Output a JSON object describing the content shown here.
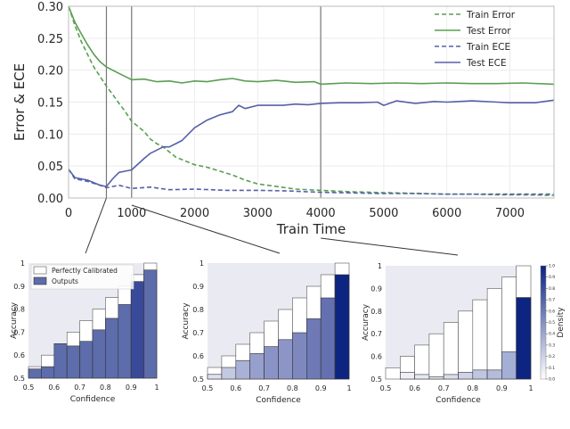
{
  "chart_data": [
    {
      "type": "line",
      "xlabel": "Train Time",
      "ylabel": "Error & ECE",
      "xlim": [
        0,
        7700
      ],
      "ylim": [
        0,
        0.3
      ],
      "xticks": [
        0,
        1000,
        2000,
        3000,
        4000,
        5000,
        6000,
        7000
      ],
      "yticks": [
        0.0,
        0.05,
        0.1,
        0.15,
        0.2,
        0.25,
        0.3
      ],
      "ytick_labels": [
        "0.00",
        "0.05",
        "0.10",
        "0.15",
        "0.20",
        "0.25",
        "0.30"
      ],
      "grid": true,
      "legend_position": "top-right",
      "markers_x": [
        600,
        1000,
        4000
      ],
      "series": [
        {
          "name": "Train Error",
          "color": "#5a9e52",
          "dashed": true,
          "x": [
            0,
            100,
            200,
            300,
            400,
            500,
            600,
            700,
            800,
            900,
            1000,
            1100,
            1200,
            1300,
            1400,
            1500,
            1600,
            1700,
            1800,
            1900,
            2000,
            2200,
            2400,
            2600,
            2800,
            3000,
            3300,
            3600,
            4000,
            4400,
            4800,
            5200,
            5600,
            6000,
            6400,
            6800,
            7200,
            7700
          ],
          "y": [
            0.3,
            0.27,
            0.245,
            0.225,
            0.205,
            0.19,
            0.175,
            0.162,
            0.148,
            0.135,
            0.12,
            0.112,
            0.104,
            0.092,
            0.085,
            0.08,
            0.072,
            0.064,
            0.06,
            0.056,
            0.052,
            0.048,
            0.042,
            0.036,
            0.028,
            0.022,
            0.018,
            0.014,
            0.012,
            0.01,
            0.009,
            0.008,
            0.007,
            0.006,
            0.006,
            0.005,
            0.005,
            0.004
          ]
        },
        {
          "name": "Test Error",
          "color": "#5a9e52",
          "dashed": false,
          "x": [
            0,
            100,
            200,
            300,
            400,
            500,
            600,
            700,
            800,
            900,
            1000,
            1200,
            1400,
            1600,
            1800,
            2000,
            2200,
            2400,
            2600,
            2800,
            3000,
            3300,
            3600,
            3900,
            4000,
            4400,
            4800,
            5200,
            5600,
            6000,
            6400,
            6800,
            7200,
            7700
          ],
          "y": [
            0.3,
            0.275,
            0.257,
            0.24,
            0.225,
            0.213,
            0.205,
            0.2,
            0.195,
            0.19,
            0.185,
            0.186,
            0.182,
            0.183,
            0.18,
            0.183,
            0.182,
            0.185,
            0.187,
            0.183,
            0.182,
            0.184,
            0.181,
            0.182,
            0.178,
            0.18,
            0.179,
            0.18,
            0.179,
            0.18,
            0.179,
            0.179,
            0.18,
            0.178
          ]
        },
        {
          "name": "Train ECE",
          "color": "#5560a8",
          "dashed": true,
          "x": [
            0,
            100,
            300,
            500,
            600,
            800,
            1000,
            1300,
            1600,
            2000,
            2500,
            3000,
            3500,
            4000,
            4500,
            5000,
            5500,
            6000,
            6500,
            7000,
            7700
          ],
          "y": [
            0.045,
            0.03,
            0.026,
            0.02,
            0.016,
            0.02,
            0.015,
            0.017,
            0.013,
            0.014,
            0.012,
            0.012,
            0.011,
            0.009,
            0.008,
            0.007,
            0.007,
            0.006,
            0.006,
            0.006,
            0.006
          ]
        },
        {
          "name": "Test ECE",
          "color": "#5560a8",
          "dashed": false,
          "x": [
            0,
            100,
            300,
            500,
            600,
            700,
            800,
            900,
            1000,
            1100,
            1200,
            1300,
            1400,
            1500,
            1600,
            1700,
            1800,
            1900,
            2000,
            2200,
            2400,
            2600,
            2700,
            2800,
            3000,
            3200,
            3400,
            3600,
            3800,
            4000,
            4300,
            4600,
            4900,
            5000,
            5200,
            5500,
            5800,
            6000,
            6400,
            6800,
            7000,
            7400,
            7700
          ],
          "y": [
            0.045,
            0.032,
            0.028,
            0.02,
            0.018,
            0.03,
            0.04,
            0.042,
            0.044,
            0.053,
            0.062,
            0.07,
            0.075,
            0.08,
            0.08,
            0.085,
            0.09,
            0.1,
            0.11,
            0.122,
            0.13,
            0.135,
            0.145,
            0.14,
            0.145,
            0.145,
            0.145,
            0.147,
            0.146,
            0.148,
            0.149,
            0.149,
            0.15,
            0.145,
            0.152,
            0.148,
            0.151,
            0.15,
            0.152,
            0.15,
            0.149,
            0.149,
            0.153
          ]
        }
      ],
      "legend": [
        "Train Error",
        "Test Error",
        "Train ECE",
        "Test ECE"
      ]
    },
    {
      "type": "bar",
      "xlabel": "Confidence",
      "ylabel": "Accuracy",
      "xlim": [
        0.5,
        1.0
      ],
      "ylim": [
        0.5,
        1.0
      ],
      "xticks": [
        0.5,
        0.6,
        0.7,
        0.8,
        0.9,
        1.0
      ],
      "yticks": [
        0.5,
        0.6,
        0.7,
        0.8,
        0.9,
        1.0
      ],
      "legend": [
        "Perfectly Calibrated",
        "Outputs"
      ],
      "legend_position": "top-left",
      "bin_width": 0.05,
      "bin_edges": [
        0.5,
        0.55,
        0.6,
        0.65,
        0.7,
        0.75,
        0.8,
        0.85,
        0.9,
        0.95
      ],
      "perfect": [
        0.55,
        0.6,
        0.65,
        0.7,
        0.75,
        0.8,
        0.85,
        0.9,
        0.95,
        1.0
      ],
      "outputs": [
        0.54,
        0.55,
        0.65,
        0.64,
        0.66,
        0.71,
        0.76,
        0.82,
        0.92,
        0.97
      ],
      "output_colors": [
        "#5d6caa",
        "#5d6caa",
        "#5d6caa",
        "#5d6caa",
        "#5d6caa",
        "#5d6caa",
        "#5d6caa",
        "#5d6caa",
        "#3a4a9a",
        "#5d6caa"
      ]
    },
    {
      "type": "bar",
      "xlabel": "Confidence",
      "ylabel": "Accuracy",
      "xlim": [
        0.5,
        1.0
      ],
      "ylim": [
        0.5,
        1.0
      ],
      "xticks": [
        0.5,
        0.6,
        0.7,
        0.8,
        0.9,
        1.0
      ],
      "yticks": [
        0.5,
        0.6,
        0.7,
        0.8,
        0.9,
        1.0
      ],
      "bin_width": 0.05,
      "bin_edges": [
        0.5,
        0.55,
        0.6,
        0.65,
        0.7,
        0.75,
        0.8,
        0.85,
        0.9,
        0.95
      ],
      "perfect": [
        0.55,
        0.6,
        0.65,
        0.7,
        0.75,
        0.8,
        0.85,
        0.9,
        0.95,
        1.0
      ],
      "outputs": [
        0.52,
        0.55,
        0.58,
        0.61,
        0.64,
        0.67,
        0.7,
        0.76,
        0.85,
        0.95
      ],
      "output_colors": [
        "#dde0ee",
        "#c4c9e2",
        "#aab1d6",
        "#97a0cc",
        "#8a93c5",
        "#8c95c6",
        "#7e88bf",
        "#6e79b6",
        "#6570b1",
        "#0d2580"
      ]
    },
    {
      "type": "bar",
      "xlabel": "Confidence",
      "ylabel": "Accuracy",
      "xlim": [
        0.5,
        1.0
      ],
      "ylim": [
        0.5,
        1.0
      ],
      "xticks": [
        0.5,
        0.6,
        0.7,
        0.8,
        0.9,
        1.0
      ],
      "yticks": [
        0.5,
        0.6,
        0.7,
        0.8,
        0.9,
        1.0
      ],
      "bin_width": 0.05,
      "bin_edges": [
        0.5,
        0.55,
        0.6,
        0.65,
        0.7,
        0.75,
        0.8,
        0.85,
        0.9,
        0.95
      ],
      "perfect": [
        0.55,
        0.6,
        0.65,
        0.7,
        0.75,
        0.8,
        0.85,
        0.9,
        0.95,
        1.0
      ],
      "outputs": [
        0.5,
        0.53,
        0.52,
        0.51,
        0.52,
        0.53,
        0.54,
        0.54,
        0.62,
        0.86
      ],
      "output_colors": [
        "#f5f5fa",
        "#eff0f7",
        "#e7e9f3",
        "#e2e5f1",
        "#dadded",
        "#cfd3e8",
        "#c0c5e0",
        "#b4bbdb",
        "#a5aed5",
        "#0d2580"
      ],
      "colorbar": {
        "label": "Density",
        "ticks": [
          0.0,
          0.1,
          0.2,
          0.3,
          0.4,
          0.5,
          0.6,
          0.7,
          0.8,
          0.9,
          1.0
        ],
        "tick_labels": [
          "0.0",
          "0.1",
          "0.2",
          "0.3",
          "0.4",
          "0.5",
          "0.6",
          "0.7",
          "0.8",
          "0.9",
          "1.0"
        ],
        "color_low": "#ffffff",
        "color_high": "#0a2280"
      }
    }
  ]
}
